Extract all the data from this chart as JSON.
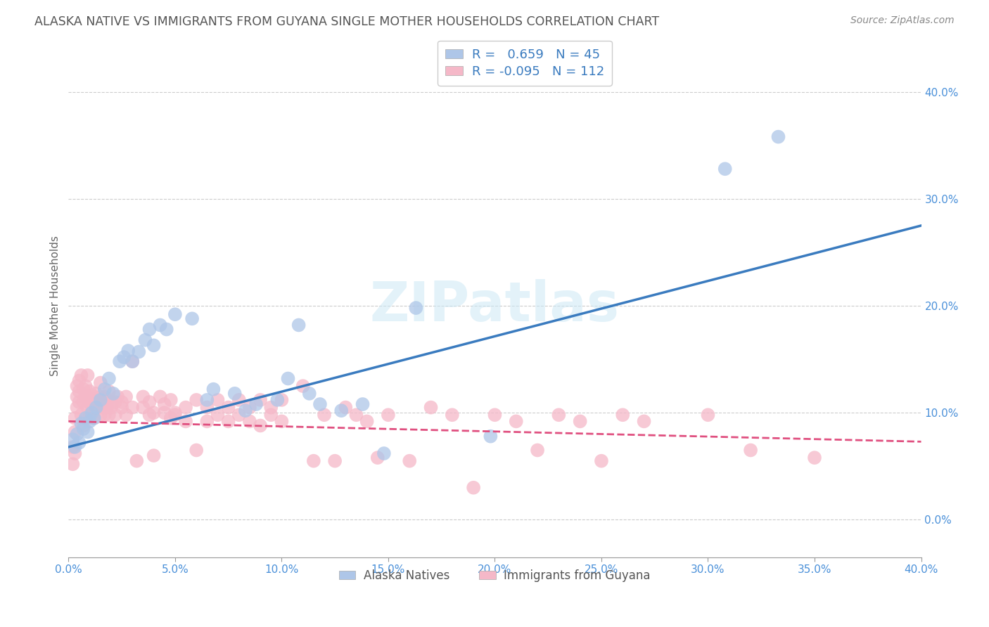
{
  "title": "ALASKA NATIVE VS IMMIGRANTS FROM GUYANA SINGLE MOTHER HOUSEHOLDS CORRELATION CHART",
  "source": "Source: ZipAtlas.com",
  "ylabel": "Single Mother Households",
  "xlim": [
    0.0,
    0.4
  ],
  "ylim": [
    -0.035,
    0.435
  ],
  "yticks": [
    0.0,
    0.1,
    0.2,
    0.3,
    0.4
  ],
  "xticks": [
    0.0,
    0.05,
    0.1,
    0.15,
    0.2,
    0.25,
    0.3,
    0.35,
    0.4
  ],
  "alaska_R": 0.659,
  "alaska_N": 45,
  "guyana_R": -0.095,
  "guyana_N": 112,
  "alaska_color": "#aec6e8",
  "guyana_color": "#f5b8c8",
  "alaska_line_color": "#3a7bbf",
  "guyana_line_color": "#e05080",
  "title_color": "#555555",
  "tick_color": "#4a90d9",
  "watermark": "ZIPatlas",
  "legend_label_alaska": "Alaska Natives",
  "legend_label_guyana": "Immigrants from Guyana",
  "alaska_line": [
    [
      0.0,
      0.068
    ],
    [
      0.4,
      0.275
    ]
  ],
  "guyana_line": [
    [
      0.0,
      0.092
    ],
    [
      0.4,
      0.073
    ]
  ],
  "alaska_points": [
    [
      0.002,
      0.075
    ],
    [
      0.003,
      0.068
    ],
    [
      0.004,
      0.08
    ],
    [
      0.005,
      0.072
    ],
    [
      0.006,
      0.09
    ],
    [
      0.007,
      0.085
    ],
    [
      0.008,
      0.095
    ],
    [
      0.009,
      0.082
    ],
    [
      0.01,
      0.092
    ],
    [
      0.011,
      0.1
    ],
    [
      0.012,
      0.095
    ],
    [
      0.013,
      0.105
    ],
    [
      0.015,
      0.112
    ],
    [
      0.017,
      0.122
    ],
    [
      0.019,
      0.132
    ],
    [
      0.021,
      0.118
    ],
    [
      0.024,
      0.148
    ],
    [
      0.026,
      0.152
    ],
    [
      0.028,
      0.158
    ],
    [
      0.03,
      0.148
    ],
    [
      0.033,
      0.157
    ],
    [
      0.036,
      0.168
    ],
    [
      0.038,
      0.178
    ],
    [
      0.04,
      0.163
    ],
    [
      0.043,
      0.182
    ],
    [
      0.046,
      0.178
    ],
    [
      0.05,
      0.192
    ],
    [
      0.058,
      0.188
    ],
    [
      0.065,
      0.112
    ],
    [
      0.068,
      0.122
    ],
    [
      0.078,
      0.118
    ],
    [
      0.083,
      0.102
    ],
    [
      0.088,
      0.108
    ],
    [
      0.098,
      0.112
    ],
    [
      0.103,
      0.132
    ],
    [
      0.108,
      0.182
    ],
    [
      0.113,
      0.118
    ],
    [
      0.118,
      0.108
    ],
    [
      0.128,
      0.102
    ],
    [
      0.138,
      0.108
    ],
    [
      0.148,
      0.062
    ],
    [
      0.163,
      0.198
    ],
    [
      0.198,
      0.078
    ],
    [
      0.308,
      0.328
    ],
    [
      0.333,
      0.358
    ]
  ],
  "guyana_points": [
    [
      0.002,
      0.068
    ],
    [
      0.002,
      0.052
    ],
    [
      0.003,
      0.082
    ],
    [
      0.003,
      0.095
    ],
    [
      0.003,
      0.062
    ],
    [
      0.004,
      0.105
    ],
    [
      0.004,
      0.115
    ],
    [
      0.004,
      0.125
    ],
    [
      0.005,
      0.11
    ],
    [
      0.005,
      0.12
    ],
    [
      0.005,
      0.13
    ],
    [
      0.006,
      0.098
    ],
    [
      0.006,
      0.135
    ],
    [
      0.007,
      0.088
    ],
    [
      0.007,
      0.11
    ],
    [
      0.007,
      0.122
    ],
    [
      0.008,
      0.095
    ],
    [
      0.008,
      0.115
    ],
    [
      0.008,
      0.125
    ],
    [
      0.009,
      0.105
    ],
    [
      0.009,
      0.115
    ],
    [
      0.009,
      0.135
    ],
    [
      0.01,
      0.098
    ],
    [
      0.01,
      0.11
    ],
    [
      0.01,
      0.12
    ],
    [
      0.011,
      0.105
    ],
    [
      0.011,
      0.112
    ],
    [
      0.012,
      0.095
    ],
    [
      0.012,
      0.115
    ],
    [
      0.013,
      0.105
    ],
    [
      0.013,
      0.118
    ],
    [
      0.014,
      0.11
    ],
    [
      0.015,
      0.098
    ],
    [
      0.015,
      0.115
    ],
    [
      0.015,
      0.128
    ],
    [
      0.016,
      0.105
    ],
    [
      0.016,
      0.112
    ],
    [
      0.017,
      0.098
    ],
    [
      0.017,
      0.115
    ],
    [
      0.018,
      0.105
    ],
    [
      0.018,
      0.11
    ],
    [
      0.019,
      0.098
    ],
    [
      0.019,
      0.12
    ],
    [
      0.02,
      0.105
    ],
    [
      0.02,
      0.11
    ],
    [
      0.022,
      0.098
    ],
    [
      0.022,
      0.11
    ],
    [
      0.023,
      0.115
    ],
    [
      0.025,
      0.105
    ],
    [
      0.025,
      0.11
    ],
    [
      0.027,
      0.098
    ],
    [
      0.027,
      0.115
    ],
    [
      0.03,
      0.148
    ],
    [
      0.03,
      0.105
    ],
    [
      0.032,
      0.055
    ],
    [
      0.035,
      0.105
    ],
    [
      0.035,
      0.115
    ],
    [
      0.038,
      0.098
    ],
    [
      0.038,
      0.11
    ],
    [
      0.04,
      0.06
    ],
    [
      0.04,
      0.1
    ],
    [
      0.043,
      0.115
    ],
    [
      0.045,
      0.1
    ],
    [
      0.045,
      0.108
    ],
    [
      0.048,
      0.095
    ],
    [
      0.048,
      0.112
    ],
    [
      0.05,
      0.1
    ],
    [
      0.05,
      0.098
    ],
    [
      0.055,
      0.092
    ],
    [
      0.055,
      0.105
    ],
    [
      0.06,
      0.065
    ],
    [
      0.06,
      0.112
    ],
    [
      0.065,
      0.092
    ],
    [
      0.065,
      0.105
    ],
    [
      0.07,
      0.098
    ],
    [
      0.07,
      0.112
    ],
    [
      0.075,
      0.092
    ],
    [
      0.075,
      0.105
    ],
    [
      0.08,
      0.098
    ],
    [
      0.08,
      0.112
    ],
    [
      0.085,
      0.092
    ],
    [
      0.085,
      0.105
    ],
    [
      0.09,
      0.088
    ],
    [
      0.09,
      0.112
    ],
    [
      0.095,
      0.098
    ],
    [
      0.095,
      0.105
    ],
    [
      0.1,
      0.092
    ],
    [
      0.1,
      0.112
    ],
    [
      0.11,
      0.125
    ],
    [
      0.115,
      0.055
    ],
    [
      0.12,
      0.098
    ],
    [
      0.125,
      0.055
    ],
    [
      0.13,
      0.105
    ],
    [
      0.135,
      0.098
    ],
    [
      0.14,
      0.092
    ],
    [
      0.145,
      0.058
    ],
    [
      0.15,
      0.098
    ],
    [
      0.16,
      0.055
    ],
    [
      0.17,
      0.105
    ],
    [
      0.18,
      0.098
    ],
    [
      0.19,
      0.03
    ],
    [
      0.2,
      0.098
    ],
    [
      0.21,
      0.092
    ],
    [
      0.22,
      0.065
    ],
    [
      0.23,
      0.098
    ],
    [
      0.24,
      0.092
    ],
    [
      0.25,
      0.055
    ],
    [
      0.26,
      0.098
    ],
    [
      0.27,
      0.092
    ],
    [
      0.3,
      0.098
    ],
    [
      0.32,
      0.065
    ],
    [
      0.35,
      0.058
    ]
  ]
}
